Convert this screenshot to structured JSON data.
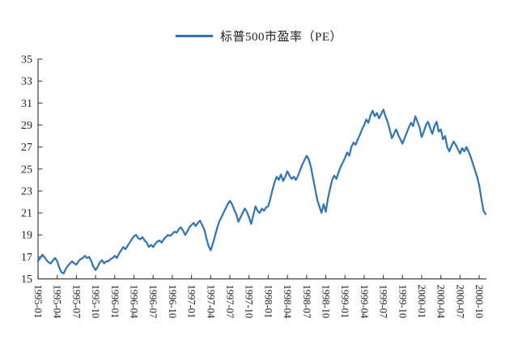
{
  "chart_data": {
    "type": "line",
    "title": "",
    "legend": "标普500市盈率（PE）",
    "series_name": "标普500市盈率（PE）",
    "line_color": "#2E74B5",
    "axis_color": "#404040",
    "label_color": "#1f1f1f",
    "grid": false,
    "legend_position": "top-center",
    "ylim": [
      15,
      35
    ],
    "y_ticks": [
      15,
      17,
      19,
      21,
      23,
      25,
      27,
      29,
      31,
      33,
      35
    ],
    "x_start": "1995-01",
    "x_end": "2000-10",
    "points_per_month": 3,
    "x_tick_labels": [
      "1995-01",
      "1995-04",
      "1995-07",
      "1995-10",
      "1996-01",
      "1996-04",
      "1996-07",
      "1996-10",
      "1997-01",
      "1997-04",
      "1997-07",
      "1997-10",
      "1998-01",
      "1998-04",
      "1998-07",
      "1998-10",
      "1999-01",
      "1999-04",
      "1999-07",
      "1999-10",
      "2000-01",
      "2000-04",
      "2000-07",
      "2000-10"
    ],
    "values": [
      16.6,
      16.9,
      17.2,
      17.0,
      16.7,
      16.5,
      16.4,
      16.7,
      16.9,
      16.6,
      16.0,
      15.6,
      15.5,
      15.9,
      16.2,
      16.4,
      16.6,
      16.4,
      16.3,
      16.6,
      16.8,
      16.9,
      17.1,
      16.9,
      17.0,
      16.6,
      16.1,
      15.8,
      16.1,
      16.5,
      16.7,
      16.4,
      16.6,
      16.6,
      16.8,
      16.9,
      17.1,
      16.9,
      17.3,
      17.6,
      17.9,
      17.7,
      18.0,
      18.3,
      18.6,
      18.9,
      19.0,
      18.7,
      18.6,
      18.8,
      18.5,
      18.3,
      17.9,
      18.1,
      17.9,
      18.2,
      18.4,
      18.5,
      18.3,
      18.6,
      18.8,
      19.0,
      18.9,
      19.1,
      19.3,
      19.2,
      19.5,
      19.7,
      19.4,
      19.0,
      19.3,
      19.7,
      19.9,
      20.1,
      19.8,
      20.1,
      20.3,
      19.9,
      19.5,
      18.7,
      18.0,
      17.6,
      18.2,
      18.9,
      19.6,
      20.2,
      20.6,
      21.0,
      21.4,
      21.8,
      22.1,
      21.8,
      21.3,
      20.9,
      20.2,
      20.6,
      21.0,
      21.4,
      21.1,
      20.6,
      20.0,
      20.8,
      21.6,
      21.2,
      21.0,
      21.4,
      21.2,
      21.5,
      21.6,
      22.3,
      23.1,
      23.8,
      24.3,
      24.0,
      24.5,
      23.9,
      24.3,
      24.8,
      24.4,
      24.1,
      24.3,
      24.0,
      24.4,
      24.9,
      25.4,
      25.8,
      26.2,
      25.9,
      25.2,
      24.2,
      23.2,
      22.2,
      21.6,
      21.0,
      21.8,
      21.1,
      22.3,
      23.2,
      24.0,
      24.4,
      24.1,
      24.7,
      25.2,
      25.6,
      26.0,
      26.5,
      26.2,
      27.0,
      27.4,
      27.2,
      27.7,
      28.1,
      28.6,
      29.0,
      29.5,
      29.2,
      29.9,
      30.3,
      29.8,
      30.1,
      29.6,
      30.0,
      30.4,
      29.8,
      29.3,
      28.6,
      27.8,
      28.2,
      28.6,
      28.1,
      27.7,
      27.3,
      27.8,
      28.3,
      28.8,
      29.2,
      28.9,
      29.8,
      29.3,
      28.8,
      27.9,
      28.4,
      29.0,
      29.3,
      28.7,
      28.2,
      28.9,
      29.3,
      28.4,
      28.6,
      27.7,
      28.0,
      27.0,
      26.6,
      27.1,
      27.5,
      27.2,
      26.8,
      26.4,
      26.9,
      26.6,
      27.0,
      26.6,
      26.1,
      25.5,
      24.9,
      24.3,
      23.5,
      22.3,
      21.2,
      20.9
    ]
  }
}
